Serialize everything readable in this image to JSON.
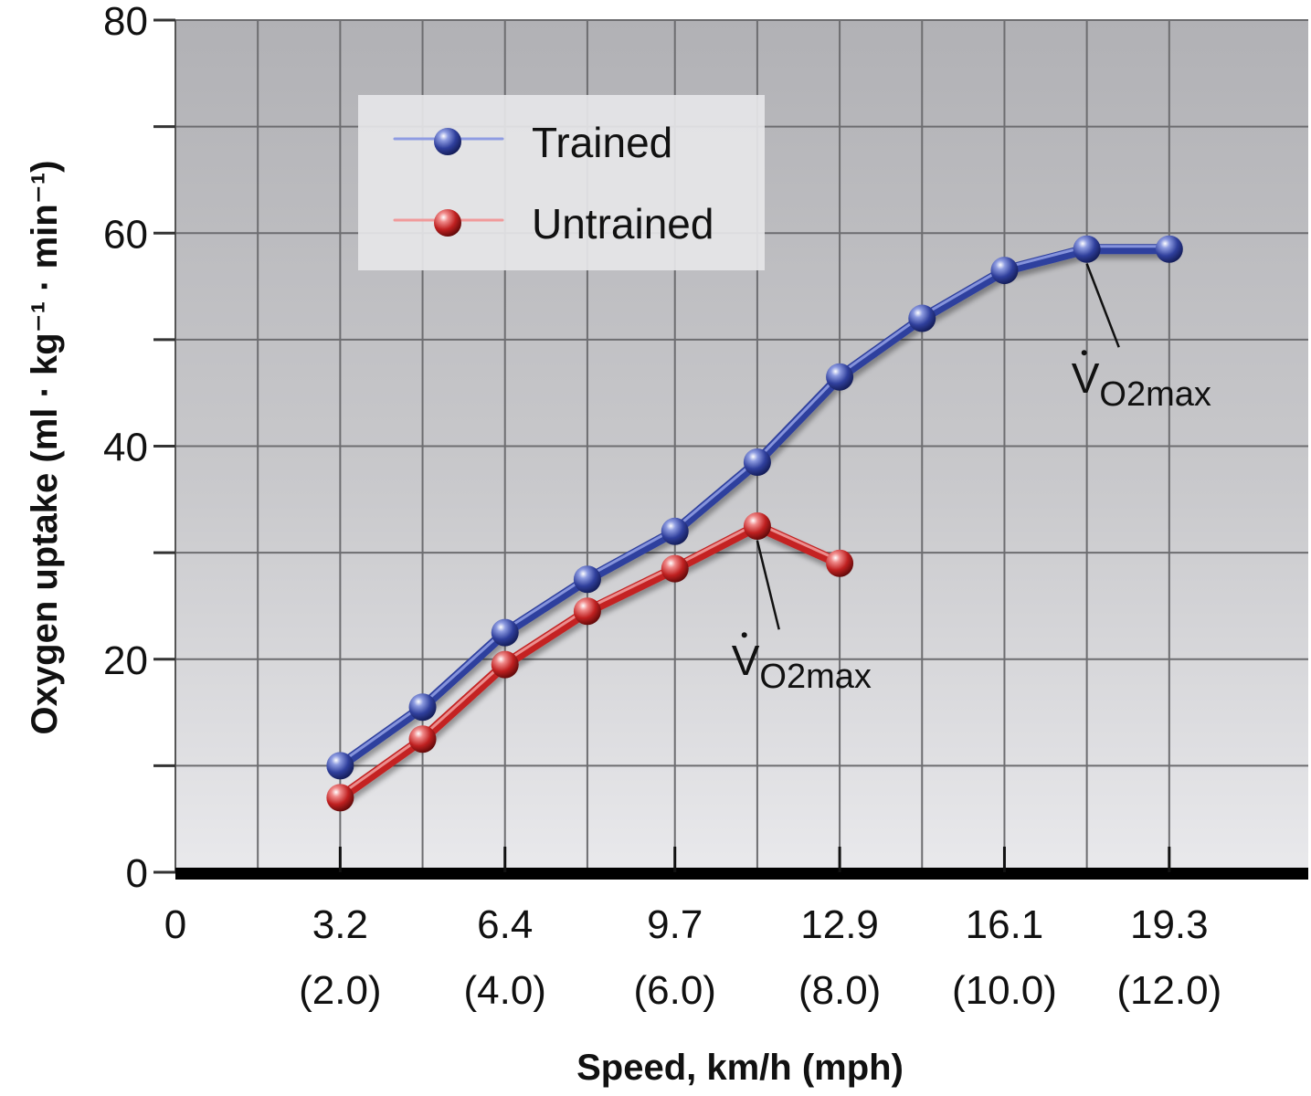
{
  "chart_data": {
    "type": "line",
    "title": "",
    "xlabel": "Speed, km/h (mph)",
    "ylabel": "Oxygen uptake (ml · kg⁻¹ · min⁻¹)",
    "xlim": [
      0,
      22
    ],
    "ylim": [
      0,
      80
    ],
    "grid": true,
    "legend_position": "top-left",
    "y_ticks": [
      0,
      20,
      40,
      60,
      80
    ],
    "y_minor_ticks": [
      10,
      30,
      50,
      70
    ],
    "x_ticks": [
      {
        "x": 0,
        "kmh": "0",
        "mph": ""
      },
      {
        "x": 3.2,
        "kmh": "3.2",
        "mph": "(2.0)"
      },
      {
        "x": 6.4,
        "kmh": "6.4",
        "mph": "(4.0)"
      },
      {
        "x": 9.7,
        "kmh": "9.7",
        "mph": "(6.0)"
      },
      {
        "x": 12.9,
        "kmh": "12.9",
        "mph": "(8.0)"
      },
      {
        "x": 16.1,
        "kmh": "16.1",
        "mph": "(10.0)"
      },
      {
        "x": 19.3,
        "kmh": "19.3",
        "mph": "(12.0)"
      }
    ],
    "x_gridlines": [
      1.6,
      3.2,
      4.8,
      6.4,
      8.0,
      9.7,
      11.3,
      12.9,
      14.5,
      16.1,
      17.7,
      19.3
    ],
    "series": [
      {
        "name": "Trained",
        "color": "#2e3f9e",
        "x": [
          3.2,
          4.8,
          6.4,
          8.0,
          9.7,
          11.3,
          12.9,
          14.5,
          16.1,
          17.7,
          19.3
        ],
        "y": [
          10,
          15.5,
          22.5,
          27.5,
          32,
          38.5,
          46.5,
          52,
          56.5,
          58.5,
          58.5
        ]
      },
      {
        "name": "Untrained",
        "color": "#c42222",
        "x": [
          3.2,
          4.8,
          6.4,
          8.0,
          9.7,
          11.3,
          12.9
        ],
        "y": [
          7,
          12.5,
          19.5,
          24.5,
          28.5,
          32.5,
          29
        ]
      }
    ],
    "annotations": [
      {
        "label": "V",
        "sub": "O2max",
        "series": "Trained",
        "point_x": 17.7,
        "point_y": 58.5,
        "text_x": 17.4,
        "text_y": 45
      },
      {
        "label": "V",
        "sub": "O2max",
        "series": "Untrained",
        "point_x": 11.3,
        "point_y": 32.5,
        "text_x": 10.8,
        "text_y": 18.5
      }
    ]
  }
}
